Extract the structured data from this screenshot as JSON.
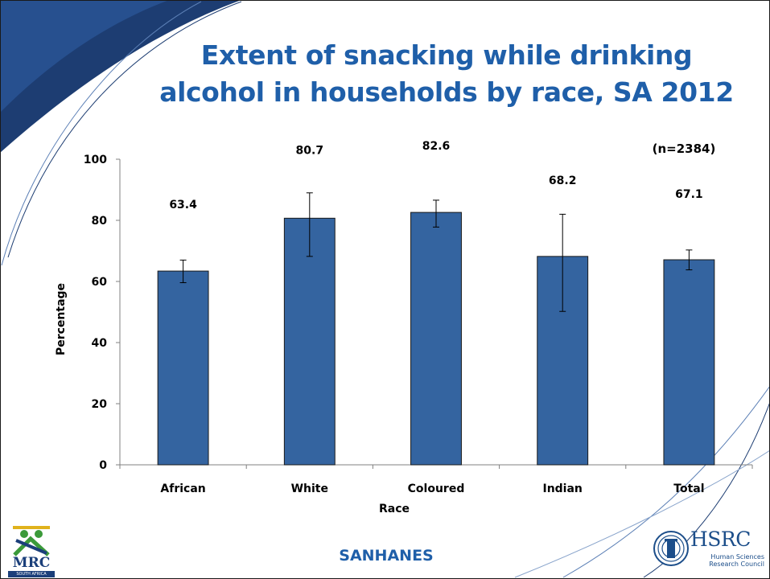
{
  "title_lines": [
    "Extent of snacking while drinking",
    "alcohol in households by race, SA 2012"
  ],
  "sample_note": "(n=2384)",
  "footer": "SANHANES",
  "logos": {
    "mrc": {
      "text": "MRC",
      "sub": "SOUTH AFRICA"
    },
    "hsrc": {
      "name": "HSRC",
      "sub_line1": "Human Sciences",
      "sub_line2": "Research Council"
    }
  },
  "colors": {
    "title": "#1f5fa9",
    "bar": "#3464a0",
    "bar_edge": "#1a1a1a",
    "deco": "#1d3d72"
  },
  "chart_data": {
    "type": "bar",
    "categories": [
      "African",
      "White",
      "Coloured",
      "Indian",
      "Total"
    ],
    "values": [
      63.4,
      80.7,
      82.6,
      68.2,
      67.1
    ],
    "error_low": [
      59.6,
      68.2,
      77.8,
      50.2,
      63.8
    ],
    "error_high": [
      67.0,
      89.0,
      86.6,
      82.0,
      70.3
    ],
    "data_labels": [
      "63.4",
      "80.7",
      "82.6",
      "68.2",
      "67.1"
    ],
    "xlabel": "Race",
    "ylabel": "Percentage",
    "ylim": [
      0,
      100
    ],
    "yticks": [
      0,
      20,
      40,
      60,
      80,
      100
    ],
    "grid": false,
    "legend": "none"
  }
}
